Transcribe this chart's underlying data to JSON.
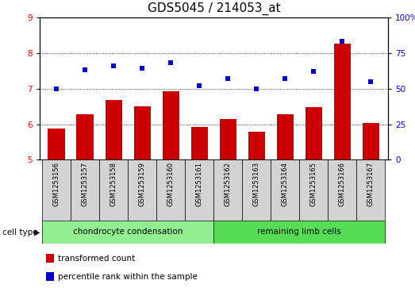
{
  "title": "GDS5045 / 214053_at",
  "samples": [
    "GSM1253156",
    "GSM1253157",
    "GSM1253158",
    "GSM1253159",
    "GSM1253160",
    "GSM1253161",
    "GSM1253162",
    "GSM1253163",
    "GSM1253164",
    "GSM1253165",
    "GSM1253166",
    "GSM1253167"
  ],
  "transformed_count": [
    5.88,
    6.27,
    6.67,
    6.5,
    6.92,
    5.92,
    6.15,
    5.78,
    6.27,
    6.47,
    8.25,
    6.03
  ],
  "percentile_rank": [
    50,
    63,
    66,
    64,
    68,
    52,
    57,
    50,
    57,
    62,
    83,
    55
  ],
  "ylim_left": [
    5,
    9
  ],
  "ylim_right": [
    0,
    100
  ],
  "yticks_left": [
    5,
    6,
    7,
    8,
    9
  ],
  "yticks_right": [
    0,
    25,
    50,
    75,
    100
  ],
  "bar_color": "#cc0000",
  "dot_color": "#0000cc",
  "bg_color": "#ffffff",
  "groups": [
    {
      "label": "chondrocyte condensation",
      "start": 0,
      "end": 5,
      "color": "#90ee90"
    },
    {
      "label": "remaining limb cells",
      "start": 6,
      "end": 11,
      "color": "#55dd55"
    }
  ],
  "cell_type_label": "cell type",
  "legend_items": [
    {
      "label": "transformed count",
      "color": "#cc0000"
    },
    {
      "label": "percentile rank within the sample",
      "color": "#0000cc"
    }
  ],
  "sample_bg_color": "#d3d3d3",
  "title_fontsize": 11,
  "tick_fontsize": 7.5,
  "label_fontsize": 8
}
